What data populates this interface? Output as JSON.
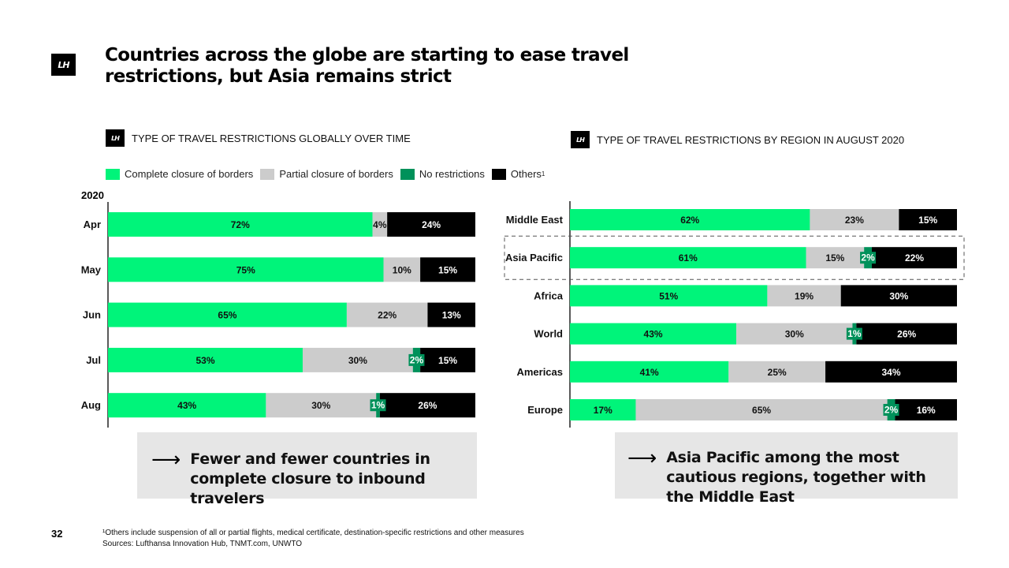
{
  "slide": {
    "logo_text": "LH",
    "title": "Countries across the globe are starting to ease travel restrictions, but Asia remains strict",
    "page_number": "32",
    "footnote": "¹Others include suspension of all or partial flights, medical certificate, destination-specific restrictions and other measures",
    "sources": "Sources: Lufthansa Innovation Hub, TNMT.com, UNWTO"
  },
  "legend": {
    "items": [
      {
        "label": "Complete closure of borders",
        "color": "#00f47a"
      },
      {
        "label": "Partial closure of borders",
        "color": "#cccccc"
      },
      {
        "label": "No restrictions",
        "color": "#00915a"
      },
      {
        "label": "Others",
        "color": "#000000",
        "sup": "1"
      }
    ]
  },
  "takeaways": {
    "left": {
      "arrow": "⟶",
      "text": "Fewer and fewer countries in complete closure to inbound travelers"
    },
    "right": {
      "arrow": "⟶",
      "text": "Asia Pacific among the most cautious regions, together with the Middle East"
    }
  },
  "chart_data": [
    {
      "type": "bar",
      "orientation": "horizontal-stacked",
      "title": "TYPE OF TRAVEL RESTRICTIONS GLOBALLY OVER TIME",
      "group_label": "2020",
      "categories": [
        "Apr",
        "May",
        "Jun",
        "Jul",
        "Aug"
      ],
      "series": [
        {
          "name": "Complete closure of borders",
          "color": "#00f47a",
          "values": [
            72,
            75,
            65,
            53,
            43
          ],
          "labels": [
            "72%",
            "75%",
            "65%",
            "53%",
            "43%"
          ]
        },
        {
          "name": "Partial closure of borders",
          "color": "#cccccc",
          "values": [
            4,
            10,
            22,
            30,
            30
          ],
          "labels": [
            "4%",
            "10%",
            "22%",
            "30%",
            "30%"
          ]
        },
        {
          "name": "No restrictions",
          "color": "#00915a",
          "values": [
            0,
            0,
            0,
            2,
            1
          ],
          "labels": [
            "",
            "",
            "",
            "2%",
            "1%"
          ]
        },
        {
          "name": "Others",
          "color": "#000000",
          "values": [
            24,
            15,
            13,
            15,
            26
          ],
          "labels": [
            "24%",
            "15%",
            "13%",
            "15%",
            "26%"
          ]
        }
      ]
    },
    {
      "type": "bar",
      "orientation": "horizontal-stacked",
      "title": "TYPE OF TRAVEL RESTRICTIONS BY REGION IN AUGUST 2020",
      "categories": [
        "Middle East",
        "Asia Pacific",
        "Africa",
        "World",
        "Americas",
        "Europe"
      ],
      "highlighted_category": "Asia Pacific",
      "series": [
        {
          "name": "Complete closure of borders",
          "color": "#00f47a",
          "values": [
            62,
            61,
            51,
            43,
            41,
            17
          ],
          "labels": [
            "62%",
            "61%",
            "51%",
            "43%",
            "41%",
            "17%"
          ]
        },
        {
          "name": "Partial closure of borders",
          "color": "#cccccc",
          "values": [
            23,
            15,
            19,
            30,
            25,
            65
          ],
          "labels": [
            "23%",
            "15%",
            "19%",
            "30%",
            "25%",
            "65%"
          ]
        },
        {
          "name": "No restrictions",
          "color": "#00915a",
          "values": [
            0,
            2,
            0,
            1,
            0,
            2
          ],
          "labels": [
            "",
            "2%",
            "",
            "1%",
            "",
            "2%"
          ]
        },
        {
          "name": "Others",
          "color": "#000000",
          "values": [
            15,
            22,
            30,
            26,
            34,
            16
          ],
          "labels": [
            "15%",
            "22%",
            "30%",
            "26%",
            "34%",
            "16%"
          ]
        }
      ]
    }
  ]
}
